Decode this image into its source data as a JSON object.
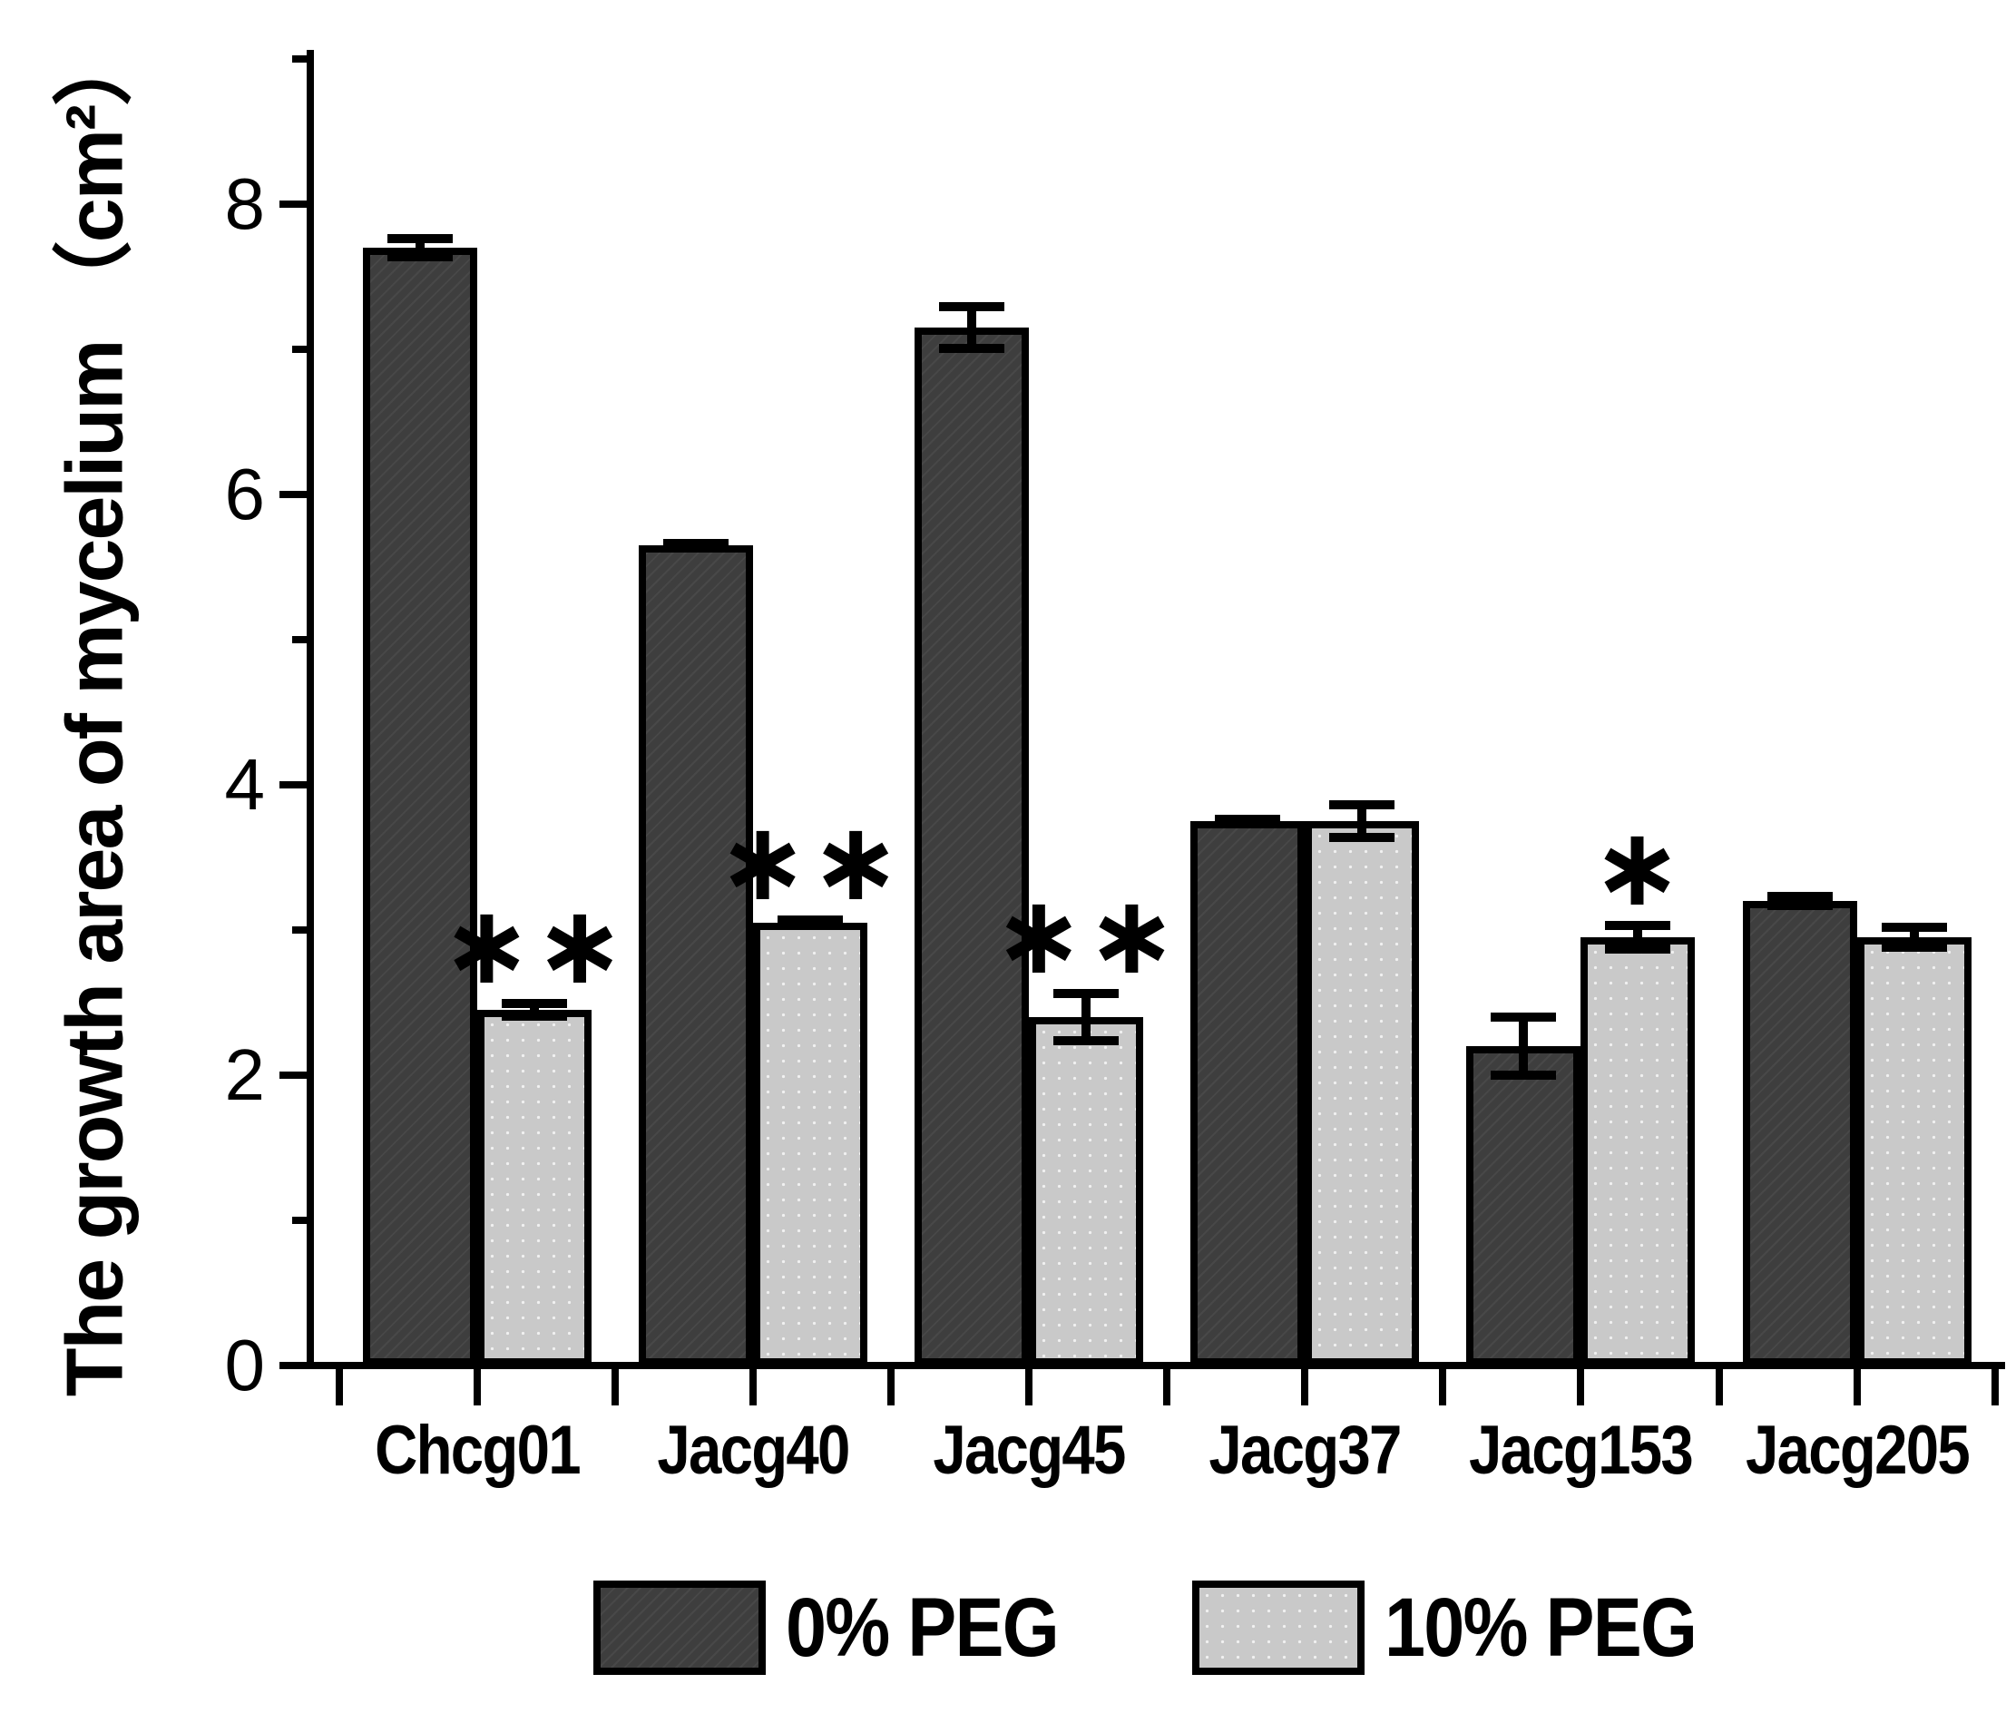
{
  "chart_data": {
    "type": "bar",
    "title": "",
    "ylabel": "The growth area of mycelium （cm²）",
    "xlabel": "",
    "categories": [
      "Chcg01",
      "Jacg40",
      "Jacg45",
      "Jacg37",
      "Jacg153",
      "Jacg205"
    ],
    "series": [
      {
        "name": "0% PEG",
        "color": "#3e3e3e",
        "values": [
          7.7,
          5.65,
          7.15,
          3.75,
          2.2,
          3.2
        ],
        "errors": [
          0.08,
          0.03,
          0.16,
          0.03,
          0.22,
          0.05
        ]
      },
      {
        "name": "10% PEG",
        "color": "#c9c9c9",
        "values": [
          2.45,
          3.05,
          2.4,
          3.75,
          2.95,
          2.95
        ],
        "errors": [
          0.06,
          0.04,
          0.18,
          0.13,
          0.1,
          0.09
        ]
      }
    ],
    "significance_above_10pct_bar": [
      "**",
      "**",
      "**",
      "",
      "*",
      ""
    ],
    "ylim": [
      0,
      9
    ],
    "yticks": [
      0,
      2,
      4,
      6,
      8
    ],
    "yticks_minor": [
      1,
      3,
      5,
      7,
      9
    ],
    "grid": "off",
    "legend_position": "bottom",
    "legend": [
      "0% PEG",
      "10% PEG"
    ]
  }
}
